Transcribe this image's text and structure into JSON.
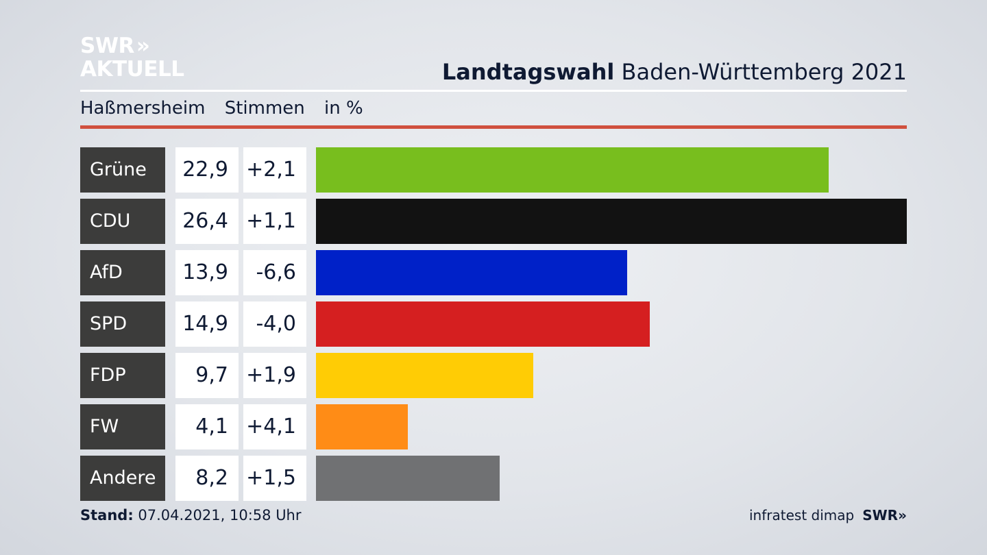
{
  "logo": {
    "line1": "SWR",
    "line2": "AKTUELL",
    "arrows": "»"
  },
  "header": {
    "title_bold": "Landtagswahl",
    "title_rest": "Baden-Württemberg 2021"
  },
  "subtitle": {
    "place": "Haßmersheim",
    "metric": "Stimmen",
    "unit": "in %"
  },
  "colors": {
    "rule": "#d0503e",
    "label_bg": "#3c3c3b"
  },
  "chart_data": {
    "type": "bar",
    "orientation": "horizontal",
    "categories": [
      "Grüne",
      "CDU",
      "AfD",
      "SPD",
      "FDP",
      "FW",
      "Andere"
    ],
    "values": [
      22.9,
      26.4,
      13.9,
      14.9,
      9.7,
      4.1,
      8.2
    ],
    "value_labels": [
      "22,9",
      "26,4",
      "13,9",
      "14,9",
      "9,7",
      "4,1",
      "8,2"
    ],
    "diff_labels": [
      "+2,1",
      "+1,1",
      "-6,6",
      "-4,0",
      "+1,9",
      "+4,1",
      "+1,5"
    ],
    "diffs": [
      2.1,
      1.1,
      -6.6,
      -4.0,
      1.9,
      4.1,
      1.5
    ],
    "colors": [
      "#78be1e",
      "#121212",
      "#0021c8",
      "#d51f20",
      "#ffcc05",
      "#ff8c16",
      "#707173"
    ],
    "xlim": [
      0,
      26.4
    ],
    "grid": false,
    "legend": "none"
  },
  "footer": {
    "stand_label": "Stand:",
    "stand_value": "07.04.2021, 10:58 Uhr",
    "source": "infratest dimap",
    "brand": "SWR",
    "brand_arrows": "»"
  }
}
